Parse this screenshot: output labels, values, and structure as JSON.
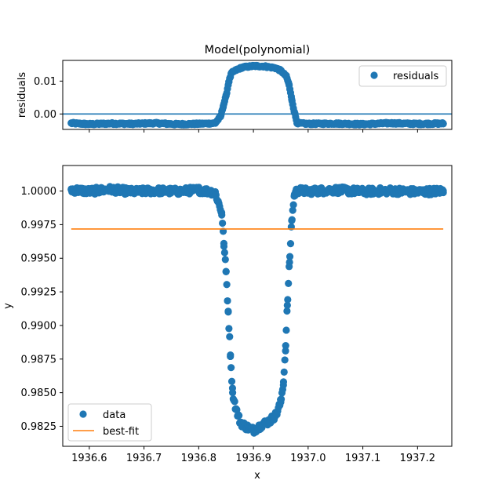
{
  "chart_data": [
    {
      "type": "scatter",
      "title": "Model(polynomial)",
      "xlabel": "",
      "ylabel": "residuals",
      "xlim": [
        1936.5515,
        1937.2626
      ],
      "ylim": [
        -0.0047,
        0.0163
      ],
      "yticks": [
        0.0,
        0.01
      ],
      "ytick_labels": [
        "0.00",
        "0.01"
      ],
      "xtick_labels_visible": false,
      "zero_line": 0.0,
      "legend": {
        "position": "top-right",
        "entries": [
          "residuals"
        ]
      },
      "series": [
        {
          "name": "residuals",
          "style": "markers",
          "color": "#1f77b4",
          "x": [
            1936.567,
            1936.6,
            1936.64,
            1936.68,
            1936.72,
            1936.76,
            1936.8,
            1936.83,
            1936.84,
            1936.845,
            1936.85,
            1936.855,
            1936.86,
            1936.87,
            1936.88,
            1936.9,
            1936.92,
            1936.94,
            1936.95,
            1936.96,
            1936.965,
            1936.97,
            1936.975,
            1936.98,
            1937.0,
            1937.05,
            1937.1,
            1937.15,
            1937.2,
            1937.247
          ],
          "y": [
            -0.0028,
            -0.0031,
            -0.0029,
            -0.003,
            -0.0028,
            -0.0031,
            -0.003,
            -0.0028,
            -0.0008,
            0.0025,
            0.0055,
            0.0098,
            0.0125,
            0.0135,
            0.0142,
            0.0146,
            0.0145,
            0.014,
            0.0132,
            0.0115,
            0.009,
            0.0045,
            0.0005,
            -0.0028,
            -0.003,
            -0.0029,
            -0.0031,
            -0.0028,
            -0.003,
            -0.0029
          ]
        }
      ]
    },
    {
      "type": "scatter",
      "title": "",
      "xlabel": "x",
      "ylabel": "y",
      "xlim": [
        1936.5515,
        1937.2626
      ],
      "ylim": [
        0.98101,
        1.0019
      ],
      "xticks": [
        1936.6,
        1936.7,
        1936.8,
        1936.9,
        1937.0,
        1937.1,
        1937.2
      ],
      "xtick_labels": [
        "1936.6",
        "1936.7",
        "1936.8",
        "1936.9",
        "1937.0",
        "1937.1",
        "1937.2"
      ],
      "yticks": [
        0.9825,
        0.985,
        0.9875,
        0.99,
        0.9925,
        0.995,
        0.9975,
        1.0
      ],
      "ytick_labels": [
        "0.9825",
        "0.9850",
        "0.9875",
        "0.9900",
        "0.9925",
        "0.9950",
        "0.9975",
        "1.0000"
      ],
      "legend": {
        "position": "bottom-left",
        "entries": [
          "data",
          "best-fit"
        ]
      },
      "series": [
        {
          "name": "data",
          "style": "markers",
          "color": "#1f77b4",
          "x": [
            1936.567,
            1936.6,
            1936.64,
            1936.68,
            1936.72,
            1936.76,
            1936.8,
            1936.83,
            1936.842,
            1936.846,
            1936.85,
            1936.854,
            1936.858,
            1936.862,
            1936.868,
            1936.876,
            1936.885,
            1936.9,
            1936.915,
            1936.93,
            1936.942,
            1936.95,
            1936.955,
            1936.959,
            1936.962,
            1936.966,
            1936.97,
            1936.975,
            1936.98,
            1937.0,
            1937.05,
            1937.1,
            1937.15,
            1937.2,
            1937.247
          ],
          "y": [
            1.0001,
            0.99998,
            1.00012,
            0.99995,
            1.00003,
            0.99997,
            1.00008,
            0.9999,
            0.9984,
            0.9961,
            0.994,
            0.991,
            0.9878,
            0.985,
            0.9838,
            0.9828,
            0.9825,
            0.9822,
            0.9826,
            0.9829,
            0.9834,
            0.9843,
            0.9858,
            0.9885,
            0.9915,
            0.9947,
            0.9978,
            0.99975,
            1.00005,
            0.99998,
            1.00008,
            0.99996,
            1.00002,
            0.99994,
            1.00001
          ]
        },
        {
          "name": "best-fit",
          "style": "line",
          "color": "#ff7f0e",
          "x": [
            1936.567,
            1937.247
          ],
          "y": [
            0.99718,
            0.99718
          ]
        }
      ]
    }
  ]
}
